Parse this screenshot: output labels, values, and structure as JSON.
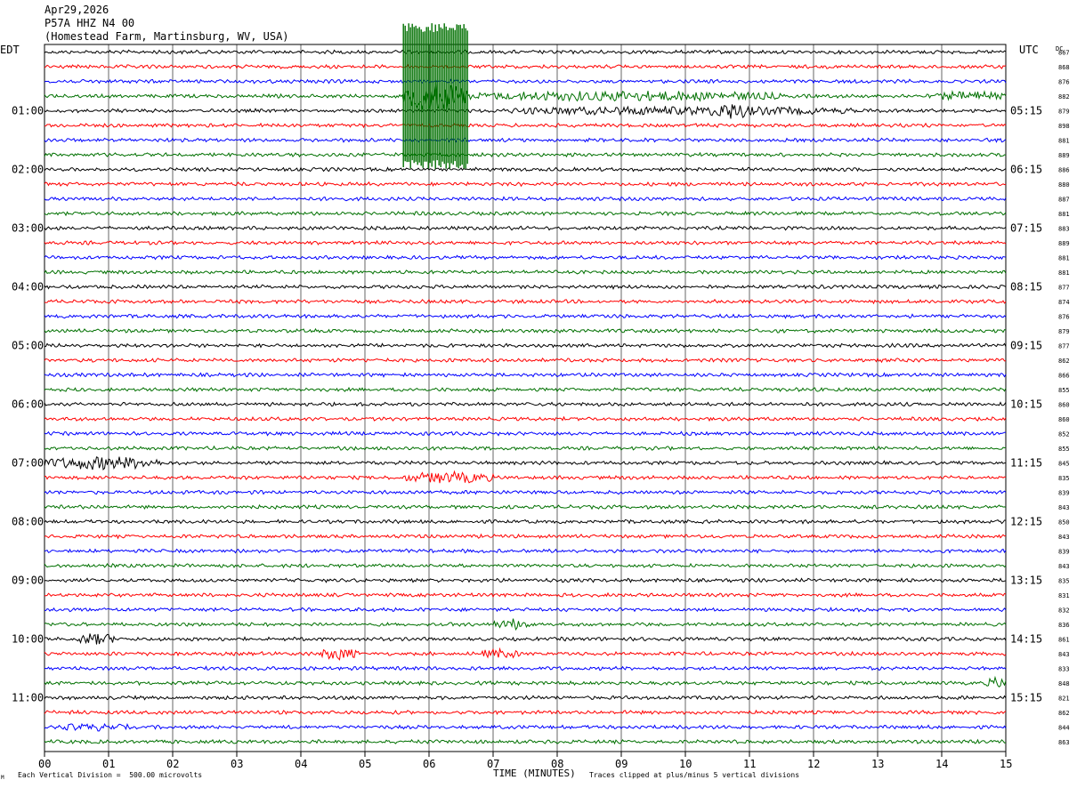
{
  "header": {
    "date": "Apr29,2026",
    "station": "P57A HHZ N4 00",
    "location": "(Homestead Farm, Martinsburg, WV, USA)"
  },
  "axes": {
    "left_label": "EDT",
    "right_label": "UTC",
    "dc_label": "DC",
    "xlabel": "TIME (MINUTES)"
  },
  "footer": {
    "scale_note": "Each Vertical Division =  500.00 microvolts",
    "clip_note": "Traces clipped at plus/minus 5 vertical divisions",
    "corner_mark": "M"
  },
  "colors": {
    "trace_cycle": [
      "#000000",
      "#ff0000",
      "#0000ff",
      "#007000"
    ],
    "grid": "#000000"
  },
  "chart_data": {
    "type": "line",
    "title": "",
    "xlim": [
      0,
      15
    ],
    "x_ticks": [
      "00",
      "01",
      "02",
      "03",
      "04",
      "05",
      "06",
      "07",
      "08",
      "09",
      "10",
      "11",
      "12",
      "13",
      "14",
      "15"
    ],
    "left_hour_labels": [
      "01:00",
      "02:00",
      "03:00",
      "04:00",
      "05:00",
      "06:00",
      "07:00",
      "08:00",
      "09:00",
      "10:00",
      "11:00"
    ],
    "right_hour_labels": [
      "05:15",
      "06:15",
      "07:15",
      "08:15",
      "09:15",
      "10:15",
      "11:15",
      "12:15",
      "13:15",
      "14:15",
      "15:15"
    ],
    "dc_offsets": [
      867,
      868,
      876,
      882,
      879,
      898,
      881,
      889,
      886,
      880,
      887,
      881,
      883,
      889,
      881,
      881,
      877,
      874,
      876,
      879,
      877,
      862,
      866,
      855,
      860,
      860,
      852,
      855,
      845,
      835,
      839,
      843,
      850,
      843,
      839,
      843,
      835,
      831,
      832,
      836,
      861,
      843,
      833,
      848,
      821,
      862,
      844,
      863
    ],
    "events": [
      {
        "trace": 3,
        "start_min": 5.6,
        "end_min": 6.6,
        "amp": 5,
        "note": "clipped"
      },
      {
        "trace": 3,
        "start_min": 6.6,
        "end_min": 11.5,
        "amp": 1.2
      },
      {
        "trace": 3,
        "start_min": 13.9,
        "end_min": 15.0,
        "amp": 1.1
      },
      {
        "trace": 4,
        "start_min": 7.2,
        "end_min": 12.6,
        "amp": 1.0
      },
      {
        "trace": 4,
        "start_min": 10.4,
        "end_min": 11.0,
        "amp": 2.5
      },
      {
        "trace": 28,
        "start_min": 0.0,
        "end_min": 1.8,
        "amp": 1.8
      },
      {
        "trace": 29,
        "start_min": 5.6,
        "end_min": 7.0,
        "amp": 1.5
      },
      {
        "trace": 39,
        "start_min": 7.0,
        "end_min": 7.6,
        "amp": 1.4
      },
      {
        "trace": 40,
        "start_min": 0.5,
        "end_min": 1.1,
        "amp": 1.5
      },
      {
        "trace": 41,
        "start_min": 4.3,
        "end_min": 4.9,
        "amp": 1.6
      },
      {
        "trace": 41,
        "start_min": 6.8,
        "end_min": 7.4,
        "amp": 1.2
      },
      {
        "trace": 43,
        "start_min": 14.7,
        "end_min": 15.0,
        "amp": 1.6
      },
      {
        "trace": 46,
        "start_min": 0.2,
        "end_min": 1.3,
        "amp": 0.8
      }
    ]
  }
}
